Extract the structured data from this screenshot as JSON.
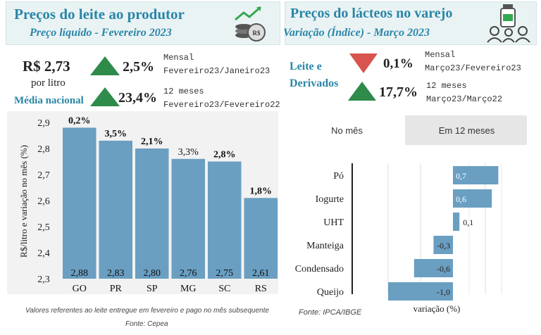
{
  "left": {
    "title": "Preços do leite ao produtor",
    "subtitle": "Preço líquido - Fevereiro 2023",
    "price": "R$ 2,73",
    "unit": "por litro",
    "avg_label": "Média nacional",
    "monthly_change": "2,5%",
    "monthly_label": "Mensal",
    "monthly_period": "Fevereiro23/Janeiro23",
    "yearly_change": "23,4%",
    "yearly_label": "12 meses",
    "yearly_period": "Fevereiro23/Fevereiro22",
    "footnote": "Valores referentes ao leite entregue em fevereiro e pago no mês subsequente",
    "source": "Fonte: Cepea",
    "icon": "coins-chart-icon"
  },
  "right": {
    "title": "Preços do lácteos no varejo",
    "subtitle": "Variação (Índice) - Março 2023",
    "group_line1": "Leite e",
    "group_line2": "Derivados",
    "monthly_change": "0,1%",
    "monthly_label": "Mensal",
    "monthly_period": "Março23/Fevereiro23",
    "yearly_change": "17,7%",
    "yearly_label": "12 meses",
    "yearly_period": "Março23/Março22",
    "tabs": [
      "No mês",
      "Em 12 meses"
    ],
    "source": "Fonte: IPCA/IBGE",
    "icon": "milk-family-icon"
  },
  "colors": {
    "bar": "#6a9fc2",
    "up": "#2e8b4a",
    "down": "#d9534f",
    "accent": "#2a86a8"
  },
  "chart_data": [
    {
      "type": "bar",
      "categories": [
        "GO",
        "PR",
        "SP",
        "MG",
        "SC",
        "RS"
      ],
      "values": [
        2.88,
        2.83,
        2.8,
        2.76,
        2.75,
        2.61
      ],
      "value_labels": [
        "2,88",
        "2,83",
        "2,80",
        "2,76",
        "2,75",
        "2,61"
      ],
      "change_labels": [
        "0,2%",
        "3,5%",
        "2,1%",
        "3,3%",
        "2,8%",
        "1,8%"
      ],
      "change_bold": [
        true,
        true,
        true,
        false,
        true,
        true
      ],
      "ylabel": "R$/litro e variação no mês (%)",
      "ylim": [
        2.3,
        2.9
      ],
      "yticks": [
        "2,3",
        "2,4",
        "2,5",
        "2,6",
        "2,7",
        "2,8",
        "2,9"
      ],
      "grid": false
    },
    {
      "type": "bar",
      "orientation": "horizontal",
      "categories": [
        "Pó",
        "Iogurte",
        "UHT",
        "Manteiga",
        "Condensado",
        "Queijo"
      ],
      "values": [
        0.7,
        0.6,
        0.1,
        -0.3,
        -0.6,
        -1.0
      ],
      "value_labels": [
        "0,7",
        "0,6",
        "0,1",
        "-0,3",
        "-0,6",
        "-1,0"
      ],
      "xlabel": "variação (%)",
      "xlim": [
        -1.1,
        0.8
      ],
      "grid": true
    }
  ]
}
